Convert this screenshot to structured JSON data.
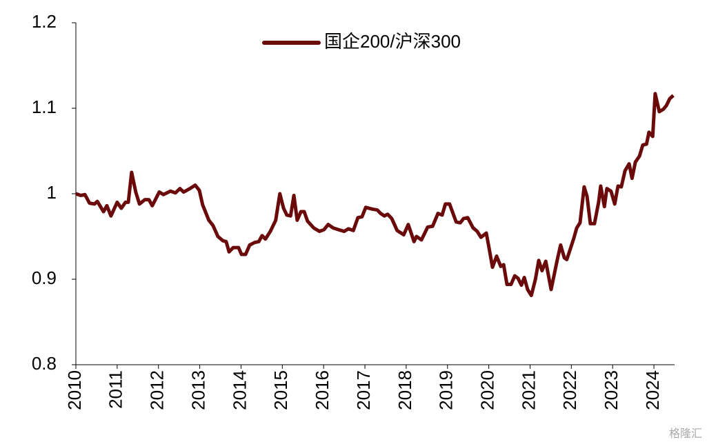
{
  "chart_data": {
    "type": "line",
    "x": [
      2010.0,
      2010.12,
      2010.22,
      2010.33,
      2010.45,
      2010.52,
      2010.67,
      2010.75,
      2010.85,
      2011.0,
      2011.1,
      2011.2,
      2011.27,
      2011.35,
      2011.45,
      2011.54,
      2011.67,
      2011.77,
      2011.85,
      2012.02,
      2012.12,
      2012.29,
      2012.41,
      2012.52,
      2012.61,
      2012.76,
      2012.89,
      2012.99,
      2013.07,
      2013.22,
      2013.32,
      2013.44,
      2013.56,
      2013.64,
      2013.71,
      2013.81,
      2013.94,
      2014.01,
      2014.11,
      2014.21,
      2014.33,
      2014.43,
      2014.51,
      2014.59,
      2014.71,
      2014.84,
      2014.94,
      2015.03,
      2015.11,
      2015.2,
      2015.28,
      2015.36,
      2015.45,
      2015.53,
      2015.61,
      2015.76,
      2015.9,
      2016.01,
      2016.11,
      2016.23,
      2016.36,
      2016.5,
      2016.6,
      2016.72,
      2016.83,
      2016.93,
      2017.02,
      2017.18,
      2017.3,
      2017.38,
      2017.47,
      2017.55,
      2017.65,
      2017.78,
      2017.94,
      2018.05,
      2018.19,
      2018.25,
      2018.37,
      2018.52,
      2018.64,
      2018.77,
      2018.87,
      2018.95,
      2019.05,
      2019.21,
      2019.31,
      2019.39,
      2019.49,
      2019.62,
      2019.72,
      2019.81,
      2019.94,
      2020.02,
      2020.09,
      2020.19,
      2020.29,
      2020.36,
      2020.44,
      2020.54,
      2020.63,
      2020.71,
      2020.79,
      2020.86,
      2020.94,
      2021.03,
      2021.13,
      2021.21,
      2021.29,
      2021.38,
      2021.51,
      2021.66,
      2021.74,
      2021.83,
      2021.89,
      2022.06,
      2022.13,
      2022.21,
      2022.31,
      2022.38,
      2022.46,
      2022.56,
      2022.66,
      2022.71,
      2022.8,
      2022.86,
      2022.96,
      2023.05,
      2023.13,
      2023.21,
      2023.3,
      2023.4,
      2023.47,
      2023.55,
      2023.65,
      2023.73,
      2023.82,
      2023.88,
      2023.97,
      2024.03,
      2024.13,
      2024.23,
      2024.3,
      2024.38,
      2024.47
    ],
    "series": [
      {
        "name": "国企200/沪深300",
        "color": "#6b0a0a",
        "values": [
          1.0,
          0.998,
          0.999,
          0.989,
          0.988,
          0.991,
          0.979,
          0.986,
          0.974,
          0.99,
          0.983,
          0.99,
          0.99,
          1.025,
          1.002,
          0.988,
          0.993,
          0.993,
          0.986,
          1.002,
          0.999,
          1.003,
          1.001,
          1.006,
          1.002,
          1.006,
          1.01,
          1.004,
          0.987,
          0.969,
          0.963,
          0.95,
          0.945,
          0.944,
          0.932,
          0.937,
          0.937,
          0.929,
          0.929,
          0.94,
          0.943,
          0.944,
          0.951,
          0.947,
          0.956,
          0.969,
          1.0,
          0.983,
          0.975,
          0.974,
          0.998,
          0.969,
          0.979,
          0.979,
          0.968,
          0.96,
          0.956,
          0.958,
          0.964,
          0.96,
          0.958,
          0.956,
          0.959,
          0.957,
          0.972,
          0.973,
          0.984,
          0.982,
          0.981,
          0.977,
          0.974,
          0.976,
          0.971,
          0.957,
          0.952,
          0.964,
          0.944,
          0.95,
          0.946,
          0.961,
          0.962,
          0.977,
          0.975,
          0.988,
          0.988,
          0.967,
          0.966,
          0.971,
          0.972,
          0.96,
          0.956,
          0.949,
          0.954,
          0.933,
          0.914,
          0.927,
          0.915,
          0.917,
          0.894,
          0.894,
          0.904,
          0.901,
          0.893,
          0.902,
          0.888,
          0.881,
          0.9,
          0.922,
          0.91,
          0.921,
          0.888,
          0.923,
          0.94,
          0.925,
          0.923,
          0.948,
          0.96,
          0.966,
          1.008,
          0.997,
          0.965,
          0.965,
          0.99,
          1.009,
          0.985,
          1.006,
          1.003,
          0.988,
          1.009,
          1.008,
          1.027,
          1.035,
          1.018,
          1.037,
          1.044,
          1.057,
          1.058,
          1.072,
          1.067,
          1.117,
          1.096,
          1.099,
          1.103,
          1.111,
          1.115
        ]
      }
    ],
    "xlim": [
      2010,
      2024.5
    ],
    "xticks": [
      2010,
      2011,
      2012,
      2013,
      2014,
      2015,
      2016,
      2017,
      2018,
      2019,
      2020,
      2021,
      2022,
      2023,
      2024
    ],
    "ylim": [
      0.8,
      1.2
    ],
    "yticks": [
      0.8,
      0.9,
      1,
      1.1,
      1.2
    ],
    "grid": false,
    "legend": "top",
    "watermark": "格隆汇"
  }
}
